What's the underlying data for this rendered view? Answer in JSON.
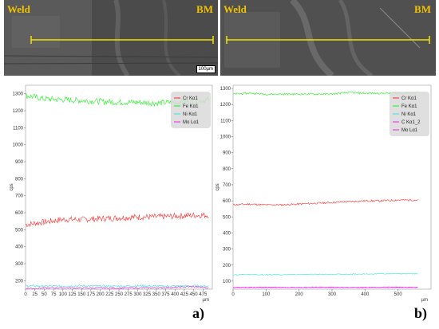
{
  "images": {
    "a": {
      "left_label": "Weld",
      "right_label": "BM",
      "scale_label": "100µm"
    },
    "b": {
      "left_label": "Weld",
      "right_label": "BM"
    }
  },
  "panel_labels": {
    "a": "a)",
    "b": "b)"
  },
  "colors": {
    "Cr": "#ff2a2a",
    "Fe": "#22ee22",
    "Ni": "#33e3e3",
    "Mo": "#ee22ee",
    "C": "#ee22ee",
    "line_scan": "#f2e400"
  },
  "chart_data": [
    {
      "type": "line",
      "panel": "a)",
      "ylabel": "cps",
      "xlabel": "µm",
      "xlim": [
        0,
        500
      ],
      "ylim": [
        150,
        1350
      ],
      "xticks": [
        0,
        25,
        50,
        75,
        100,
        125,
        150,
        175,
        200,
        225,
        250,
        275,
        300,
        325,
        350,
        375,
        400,
        425,
        450,
        475
      ],
      "yticks": [
        200,
        300,
        400,
        500,
        600,
        700,
        800,
        900,
        1000,
        1100,
        1200,
        1300
      ],
      "legend_position": "top-right",
      "series": [
        {
          "name": "Cr Kα1",
          "x": [
            0,
            50,
            100,
            150,
            200,
            250,
            300,
            350,
            400,
            450,
            490
          ],
          "values": [
            530,
            545,
            560,
            560,
            565,
            570,
            575,
            575,
            580,
            585,
            585
          ]
        },
        {
          "name": "Fe Kα1",
          "x": [
            0,
            50,
            100,
            150,
            200,
            250,
            300,
            350,
            400,
            450,
            490
          ],
          "values": [
            1290,
            1270,
            1265,
            1260,
            1255,
            1250,
            1250,
            1245,
            1250,
            1255,
            1265
          ]
        },
        {
          "name": "Ni Kα1",
          "x": [
            0,
            50,
            100,
            150,
            200,
            250,
            300,
            350,
            400,
            450,
            490
          ],
          "values": [
            170,
            168,
            168,
            170,
            168,
            168,
            170,
            168,
            168,
            170,
            168
          ]
        },
        {
          "name": "Mo Lα1",
          "x": [
            0,
            50,
            100,
            150,
            200,
            250,
            300,
            350,
            400,
            450,
            490
          ],
          "values": [
            155,
            156,
            158,
            156,
            157,
            156,
            157,
            158,
            160,
            165,
            158
          ]
        }
      ]
    },
    {
      "type": "line",
      "panel": "b)",
      "ylabel": "cps",
      "xlabel": "µm",
      "xlim": [
        0,
        600
      ],
      "ylim": [
        50,
        1320
      ],
      "xticks": [
        0,
        100,
        200,
        300,
        400,
        500
      ],
      "yticks": [
        100,
        200,
        300,
        400,
        500,
        600,
        700,
        800,
        900,
        1000,
        1100,
        1200,
        1300
      ],
      "legend_position": "top-right",
      "series": [
        {
          "name": "Cr Kα1",
          "x": [
            0,
            50,
            100,
            150,
            200,
            250,
            300,
            350,
            400,
            450,
            500,
            560
          ],
          "values": [
            575,
            580,
            575,
            575,
            580,
            585,
            590,
            595,
            600,
            600,
            605,
            605
          ]
        },
        {
          "name": "Fe Kα1",
          "x": [
            0,
            50,
            100,
            150,
            200,
            250,
            300,
            350,
            400,
            450,
            500,
            560
          ],
          "values": [
            1265,
            1270,
            1265,
            1265,
            1265,
            1265,
            1265,
            1275,
            1270,
            1270,
            1270,
            1275
          ]
        },
        {
          "name": "Ni Kα1",
          "x": [
            0,
            50,
            100,
            150,
            200,
            250,
            300,
            350,
            400,
            450,
            500,
            560
          ],
          "values": [
            140,
            140,
            140,
            140,
            142,
            142,
            142,
            144,
            144,
            146,
            146,
            146
          ]
        },
        {
          "name": "C Kα1_2",
          "x": [
            0,
            50,
            100,
            150,
            200,
            250,
            300,
            350,
            400,
            450,
            500,
            560
          ],
          "values": [
            62,
            62,
            63,
            62,
            62,
            63,
            63,
            62,
            62,
            63,
            63,
            62
          ]
        },
        {
          "name": "Mo Lα1",
          "x": [
            0,
            50,
            100,
            150,
            200,
            250,
            300,
            350,
            400,
            450,
            500,
            560
          ],
          "values": [
            60,
            60,
            60,
            60,
            60,
            60,
            60,
            60,
            60,
            60,
            60,
            60
          ]
        }
      ]
    }
  ]
}
